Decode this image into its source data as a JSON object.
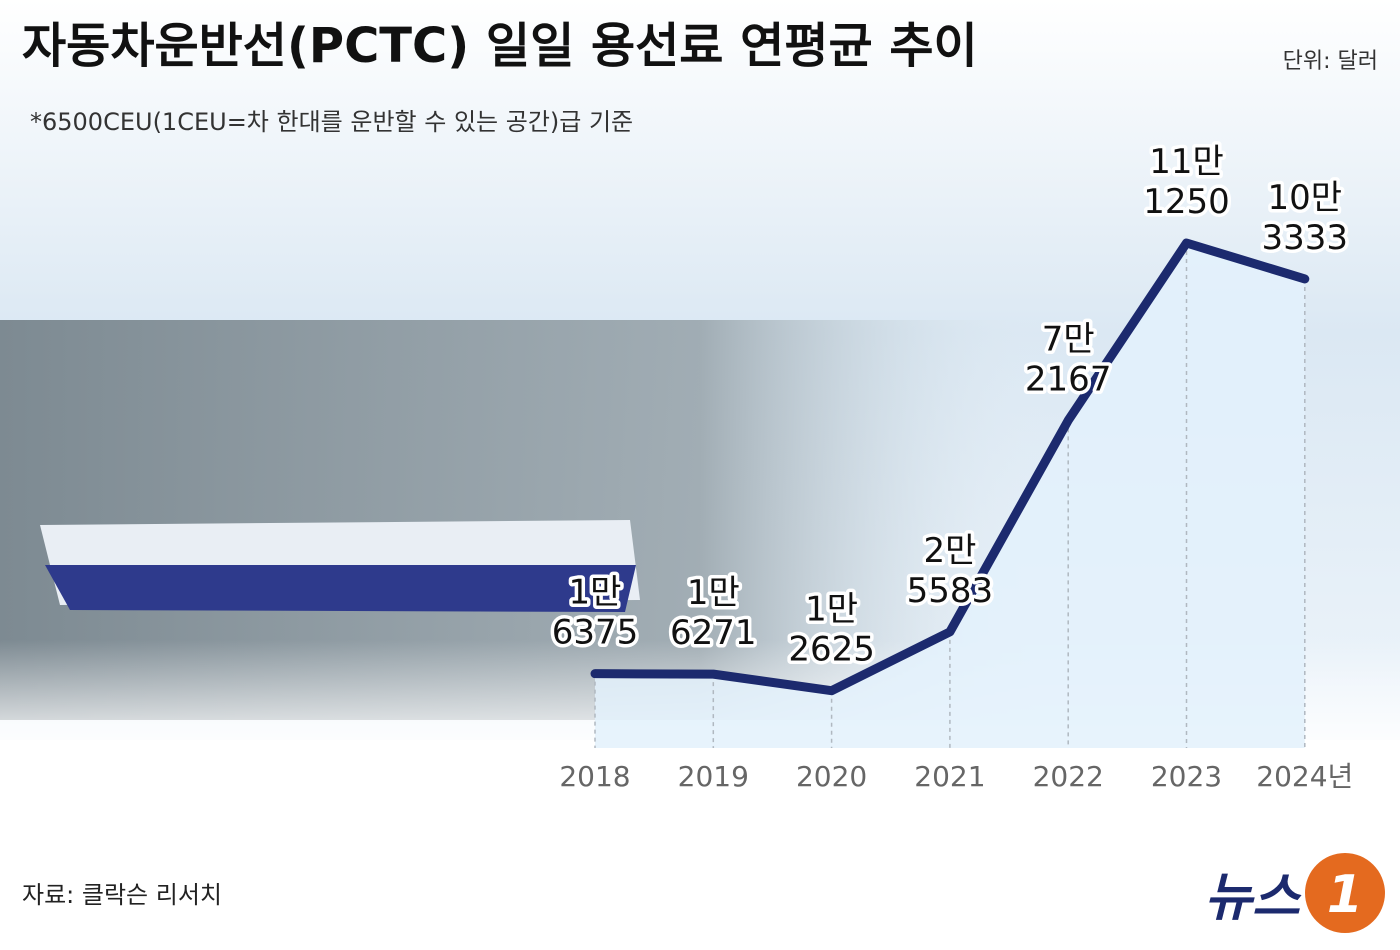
{
  "chart_data": {
    "type": "line",
    "title": "자동차운반선(PCTC) 일일 용선료 연평균 추이",
    "unit": "단위: 달러",
    "subtitle": "*6500CEU(1CEU=차 한대를 운반할 수 있는 공간)급 기준",
    "source": "자료: 클락슨 리서치",
    "brand": [
      "뉴스",
      "1"
    ],
    "categories": [
      "2018",
      "2019",
      "2020",
      "2021",
      "2022",
      "2023",
      "2024년"
    ],
    "values": [
      16375,
      16271,
      12625,
      25583,
      72167,
      111250,
      103333
    ],
    "value_labels": [
      "1만 6375",
      "1만 6271",
      "1만 2625",
      "2만 5583",
      "7만 2167",
      "11만 1250",
      "10만 3333"
    ],
    "color": "#1c2a6e"
  }
}
